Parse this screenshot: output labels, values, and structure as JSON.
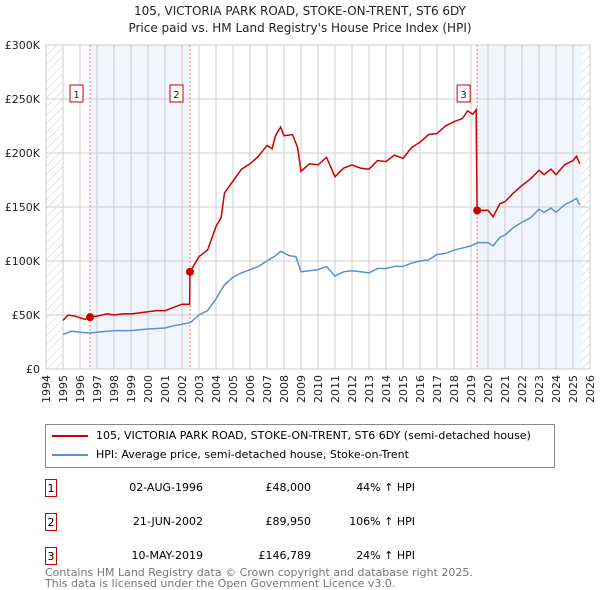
{
  "chart_data": {
    "type": "line",
    "title": "105, VICTORIA PARK ROAD, STOKE-ON-TRENT, ST6 6DY",
    "subtitle": "Price paid vs. HM Land Registry's House Price Index (HPI)",
    "xlim": [
      1994,
      2026
    ],
    "ylim": [
      0,
      300000
    ],
    "yticks": [
      {
        "v": 0,
        "l": "£0"
      },
      {
        "v": 50000,
        "l": "£50K"
      },
      {
        "v": 100000,
        "l": "£100K"
      },
      {
        "v": 150000,
        "l": "£150K"
      },
      {
        "v": 200000,
        "l": "£200K"
      },
      {
        "v": 250000,
        "l": "£250K"
      },
      {
        "v": 300000,
        "l": "£300K"
      }
    ],
    "xticks": [
      "1994",
      "1995",
      "1996",
      "1997",
      "1998",
      "1999",
      "2000",
      "2001",
      "2002",
      "2003",
      "2004",
      "2005",
      "2006",
      "2007",
      "2008",
      "2009",
      "2010",
      "2011",
      "2012",
      "2013",
      "2014",
      "2015",
      "2016",
      "2017",
      "2018",
      "2019",
      "2020",
      "2021",
      "2022",
      "2023",
      "2024",
      "2025",
      "2026"
    ],
    "grid": true,
    "series": [
      {
        "name": "105, VICTORIA PARK ROAD, STOKE-ON-TRENT, ST6 6DY (semi-detached house)",
        "color": "#cc0000",
        "points": [
          [
            1995,
            45
          ],
          [
            1995.3,
            50
          ],
          [
            1995.7,
            49
          ],
          [
            1996.3,
            46
          ],
          [
            1996.6,
            48
          ],
          [
            1997,
            49
          ],
          [
            1997.6,
            51
          ],
          [
            1998,
            50
          ],
          [
            1998.5,
            51
          ],
          [
            1999,
            51
          ],
          [
            1999.5,
            52
          ],
          [
            2000,
            53
          ],
          [
            2000.5,
            54
          ],
          [
            2001,
            54
          ],
          [
            2001.5,
            57
          ],
          [
            2002,
            60
          ],
          [
            2002.45,
            60
          ],
          [
            2002.47,
            89.95
          ],
          [
            2003,
            104
          ],
          [
            2003.5,
            110
          ],
          [
            2004,
            132
          ],
          [
            2004.3,
            140
          ],
          [
            2004.5,
            163
          ],
          [
            2005,
            174
          ],
          [
            2005.5,
            185
          ],
          [
            2006,
            190
          ],
          [
            2006.5,
            197
          ],
          [
            2007,
            207
          ],
          [
            2007.3,
            204
          ],
          [
            2007.5,
            216
          ],
          [
            2007.8,
            224
          ],
          [
            2008,
            216
          ],
          [
            2008.5,
            217
          ],
          [
            2008.8,
            205
          ],
          [
            2009,
            183
          ],
          [
            2009.5,
            190
          ],
          [
            2010,
            189
          ],
          [
            2010.5,
            196
          ],
          [
            2011,
            178
          ],
          [
            2011.5,
            186
          ],
          [
            2012,
            189
          ],
          [
            2012.5,
            186
          ],
          [
            2013,
            185
          ],
          [
            2013.5,
            193
          ],
          [
            2014,
            192
          ],
          [
            2014.5,
            198
          ],
          [
            2015,
            195
          ],
          [
            2015.5,
            205
          ],
          [
            2016,
            210
          ],
          [
            2016.5,
            217
          ],
          [
            2017,
            218
          ],
          [
            2017.5,
            225
          ],
          [
            2018,
            229
          ],
          [
            2018.5,
            232
          ],
          [
            2018.8,
            239
          ],
          [
            2019.1,
            236
          ],
          [
            2019.3,
            240
          ],
          [
            2019.36,
            146.789
          ],
          [
            2020,
            147
          ],
          [
            2020.3,
            141
          ],
          [
            2020.7,
            153
          ],
          [
            2021,
            155
          ],
          [
            2021.5,
            163
          ],
          [
            2022,
            170
          ],
          [
            2022.5,
            176
          ],
          [
            2023,
            184
          ],
          [
            2023.3,
            180
          ],
          [
            2023.7,
            185
          ],
          [
            2024,
            180
          ],
          [
            2024.5,
            189
          ],
          [
            2025,
            193
          ],
          [
            2025.2,
            197
          ],
          [
            2025.4,
            190
          ]
        ]
      },
      {
        "name": "HPI: Average price, semi-detached house, Stoke-on-Trent",
        "color": "#5b8fd4",
        "points": [
          [
            1995,
            32
          ],
          [
            1995.5,
            35
          ],
          [
            1996,
            34
          ],
          [
            1996.6,
            33.3
          ],
          [
            1997,
            34
          ],
          [
            1998,
            35.5
          ],
          [
            1999,
            35.5
          ],
          [
            2000,
            37
          ],
          [
            2001,
            38
          ],
          [
            2001.5,
            40
          ],
          [
            2002.5,
            43
          ],
          [
            2003,
            50
          ],
          [
            2003.5,
            54
          ],
          [
            2004,
            65
          ],
          [
            2004.5,
            78
          ],
          [
            2005,
            85
          ],
          [
            2005.5,
            89
          ],
          [
            2006,
            92
          ],
          [
            2006.5,
            95
          ],
          [
            2007,
            100
          ],
          [
            2007.5,
            105
          ],
          [
            2007.8,
            109
          ],
          [
            2008.3,
            105
          ],
          [
            2008.7,
            104
          ],
          [
            2009,
            90
          ],
          [
            2009.5,
            91
          ],
          [
            2010,
            92
          ],
          [
            2010.5,
            95
          ],
          [
            2011,
            86
          ],
          [
            2011.5,
            90
          ],
          [
            2012,
            91
          ],
          [
            2012.5,
            90
          ],
          [
            2013,
            89
          ],
          [
            2013.5,
            93
          ],
          [
            2014,
            93
          ],
          [
            2014.5,
            95
          ],
          [
            2015,
            95
          ],
          [
            2015.5,
            98
          ],
          [
            2016,
            100
          ],
          [
            2016.5,
            101
          ],
          [
            2017,
            106
          ],
          [
            2017.5,
            107
          ],
          [
            2018,
            110
          ],
          [
            2018.5,
            112
          ],
          [
            2019,
            114
          ],
          [
            2019.4,
            117
          ],
          [
            2020,
            117
          ],
          [
            2020.3,
            114
          ],
          [
            2020.7,
            122
          ],
          [
            2021,
            124
          ],
          [
            2021.5,
            131
          ],
          [
            2022,
            136
          ],
          [
            2022.5,
            140
          ],
          [
            2023,
            148
          ],
          [
            2023.3,
            145
          ],
          [
            2023.7,
            149
          ],
          [
            2024,
            145
          ],
          [
            2024.5,
            152
          ],
          [
            2025,
            156
          ],
          [
            2025.2,
            158
          ],
          [
            2025.4,
            152
          ]
        ]
      }
    ],
    "sales": [
      {
        "n": "1",
        "x": 1996.59,
        "price": 48000,
        "date": "02-AUG-1996",
        "price_label": "£48,000",
        "hpi": "44% ↑ HPI"
      },
      {
        "n": "2",
        "x": 2002.47,
        "price": 89950,
        "date": "21-JUN-2002",
        "price_label": "£89,950",
        "hpi": "106% ↑ HPI"
      },
      {
        "n": "3",
        "x": 2019.36,
        "price": 146789,
        "date": "10-MAY-2019",
        "price_label": "£146,789",
        "hpi": "24% ↑ HPI"
      }
    ]
  },
  "footer": [
    "Contains HM Land Registry data © Crown copyright and database right 2025.",
    "This data is licensed under the Open Government Licence v3.0."
  ]
}
